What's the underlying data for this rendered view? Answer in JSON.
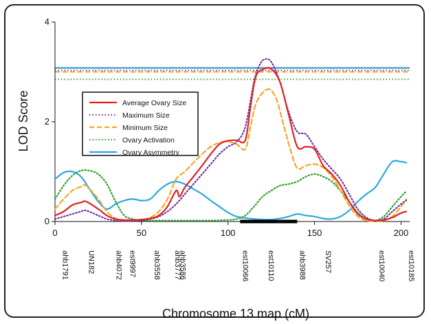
{
  "chart_data": {
    "type": "line",
    "xlabel": "Chromosome 13 map (cM)",
    "ylabel": "LOD Score",
    "xlim": [
      0,
      205
    ],
    "ylim": [
      0,
      4
    ],
    "x_ticks": [
      "0",
      "50",
      "100",
      "150",
      "200"
    ],
    "y_ticks": [
      "0",
      "2",
      "4"
    ],
    "legend_position": "middle-left",
    "series": [
      {
        "name": "Average Ovary Size",
        "color": "#e02020",
        "dash": "solid",
        "threshold": 3.08,
        "x": [
          0,
          5,
          10,
          15,
          18,
          25,
          30,
          35,
          40,
          45,
          50,
          55,
          60,
          65,
          70,
          72,
          75,
          80,
          85,
          90,
          95,
          100,
          105,
          110,
          113,
          116,
          120,
          125,
          130,
          135,
          140,
          145,
          150,
          155,
          160,
          165,
          170,
          175,
          180,
          185,
          190,
          195,
          200,
          203
        ],
        "values": [
          0.12,
          0.2,
          0.33,
          0.38,
          0.4,
          0.25,
          0.12,
          0.05,
          0.03,
          0.03,
          0.04,
          0.06,
          0.12,
          0.3,
          0.62,
          0.5,
          0.68,
          0.9,
          1.12,
          1.35,
          1.55,
          1.62,
          1.63,
          1.63,
          2.3,
          2.9,
          3.05,
          3.06,
          2.8,
          2.15,
          1.5,
          1.5,
          1.45,
          1.12,
          0.95,
          0.72,
          0.4,
          0.15,
          0.05,
          0.02,
          0.03,
          0.08,
          0.17,
          0.2
        ]
      },
      {
        "name": "Maximum Size",
        "color": "#7030a0",
        "dash": "dotted",
        "threshold": 3.03,
        "x": [
          0,
          5,
          10,
          15,
          18,
          25,
          30,
          35,
          40,
          45,
          50,
          55,
          60,
          65,
          70,
          75,
          80,
          85,
          90,
          95,
          100,
          105,
          110,
          115,
          118,
          121,
          125,
          130,
          135,
          140,
          145,
          150,
          155,
          160,
          165,
          170,
          175,
          180,
          185,
          190,
          195,
          200,
          203
        ],
        "values": [
          0.05,
          0.1,
          0.15,
          0.2,
          0.22,
          0.12,
          0.05,
          0.02,
          0.01,
          0.01,
          0.02,
          0.05,
          0.1,
          0.2,
          0.35,
          0.55,
          0.75,
          0.95,
          1.15,
          1.35,
          1.5,
          1.6,
          1.9,
          2.8,
          3.12,
          3.25,
          3.2,
          2.8,
          2.2,
          1.8,
          1.75,
          1.5,
          1.25,
          1.05,
          0.85,
          0.55,
          0.25,
          0.08,
          0.02,
          0.05,
          0.2,
          0.35,
          0.42
        ]
      },
      {
        "name": "Minimum Size",
        "color": "#f5a623",
        "dash": "dashed",
        "threshold": 3.0,
        "x": [
          0,
          5,
          10,
          15,
          18,
          25,
          30,
          35,
          40,
          45,
          50,
          55,
          60,
          65,
          70,
          75,
          80,
          85,
          90,
          95,
          100,
          105,
          110,
          113,
          116,
          120,
          124,
          128,
          132,
          136,
          140,
          145,
          150,
          155,
          160,
          165,
          170,
          175,
          180,
          185,
          190,
          195,
          200,
          203
        ],
        "values": [
          0.25,
          0.45,
          0.62,
          0.7,
          0.72,
          0.45,
          0.2,
          0.06,
          0.02,
          0.02,
          0.03,
          0.08,
          0.2,
          0.45,
          0.85,
          1.0,
          1.18,
          1.35,
          1.5,
          1.58,
          1.6,
          1.55,
          1.45,
          1.9,
          2.35,
          2.58,
          2.65,
          2.45,
          1.95,
          1.45,
          1.07,
          1.12,
          1.15,
          1.08,
          0.9,
          0.62,
          0.32,
          0.1,
          0.02,
          0.01,
          0.02,
          0.1,
          0.3,
          0.45
        ]
      },
      {
        "name": "Ovary Activation",
        "color": "#2aa02a",
        "dash": "dotted",
        "threshold": 2.85,
        "x": [
          0,
          5,
          10,
          15,
          20,
          25,
          30,
          35,
          40,
          45,
          50,
          60,
          70,
          80,
          90,
          100,
          105,
          110,
          115,
          120,
          125,
          130,
          135,
          140,
          145,
          150,
          155,
          160,
          165,
          170,
          175,
          180,
          185,
          190,
          195,
          200,
          203
        ],
        "values": [
          0.45,
          0.72,
          0.92,
          1.02,
          1.02,
          0.95,
          0.75,
          0.4,
          0.12,
          0.05,
          0.02,
          0.02,
          0.02,
          0.02,
          0.02,
          0.03,
          0.05,
          0.12,
          0.3,
          0.5,
          0.62,
          0.72,
          0.75,
          0.8,
          0.9,
          0.95,
          0.9,
          0.8,
          0.62,
          0.4,
          0.18,
          0.05,
          0.02,
          0.1,
          0.3,
          0.5,
          0.6
        ]
      },
      {
        "name": "Ovary Asymmetry",
        "color": "#29a8e0",
        "dash": "solid",
        "threshold": 3.08,
        "x": [
          0,
          5,
          10,
          15,
          20,
          25,
          30,
          35,
          40,
          45,
          50,
          55,
          60,
          65,
          70,
          75,
          80,
          85,
          90,
          95,
          100,
          105,
          110,
          115,
          120,
          125,
          130,
          135,
          140,
          145,
          150,
          155,
          160,
          165,
          170,
          175,
          180,
          185,
          190,
          195,
          200,
          203
        ],
        "values": [
          0.85,
          0.98,
          1.0,
          0.9,
          0.65,
          0.4,
          0.25,
          0.35,
          0.42,
          0.45,
          0.42,
          0.45,
          0.62,
          0.75,
          0.8,
          0.75,
          0.65,
          0.55,
          0.42,
          0.3,
          0.18,
          0.1,
          0.07,
          0.05,
          0.04,
          0.04,
          0.06,
          0.1,
          0.15,
          0.12,
          0.1,
          0.06,
          0.05,
          0.1,
          0.22,
          0.4,
          0.55,
          0.68,
          0.95,
          1.2,
          1.2,
          1.18
        ]
      }
    ],
    "markers": [
      {
        "label": "ahb1791",
        "x": 3
      },
      {
        "label": "UN182",
        "x": 18
      },
      {
        "label": "ahb4072",
        "x": 34
      },
      {
        "label": "est9997",
        "x": 42
      },
      {
        "label": "ahb3558",
        "x": 56
      },
      {
        "label": "ahb3777",
        "x": 68
      },
      {
        "label": "ahb3586",
        "x": 71
      },
      {
        "label": "est10066",
        "x": 107
      },
      {
        "label": "est10110",
        "x": 122
      },
      {
        "label": "ahb3988",
        "x": 140
      },
      {
        "label": "SV257",
        "x": 155
      },
      {
        "label": "est10040",
        "x": 186
      },
      {
        "label": "est10185",
        "x": 203
      }
    ],
    "confidence_interval": [
      107,
      140
    ]
  }
}
